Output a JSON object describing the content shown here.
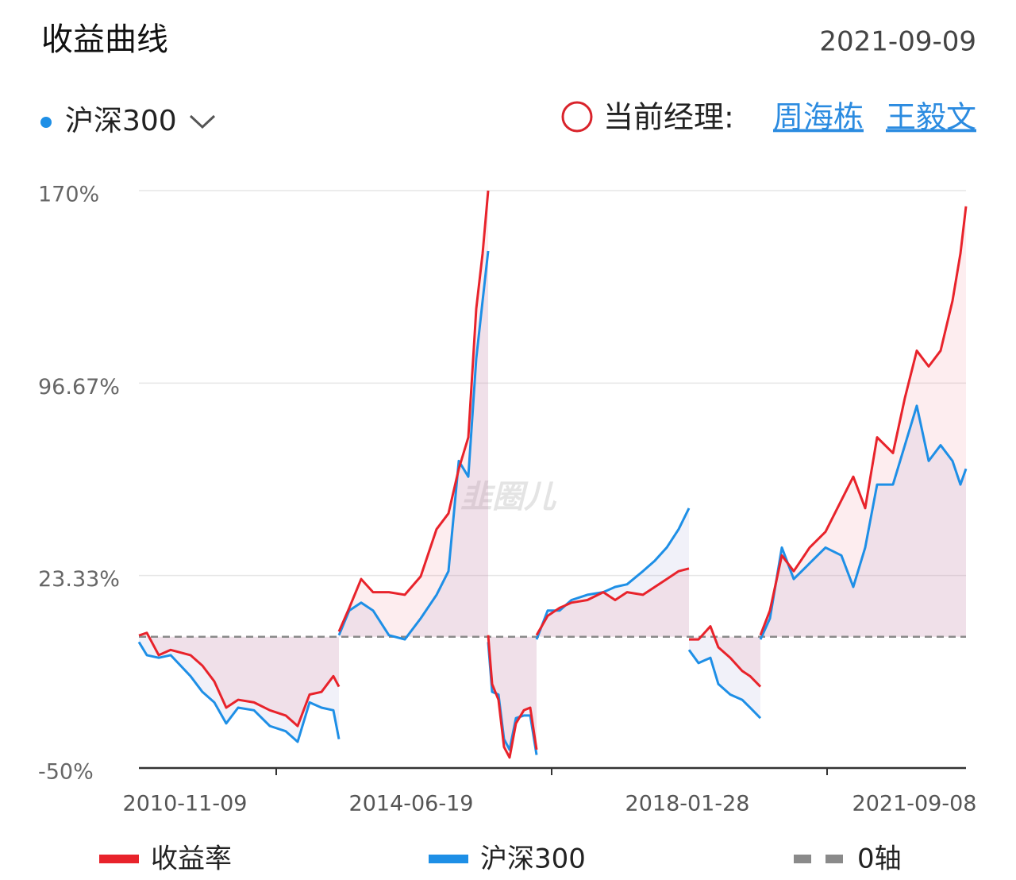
{
  "header": {
    "title": "收益曲线",
    "date": "2021-09-09"
  },
  "selector": {
    "label": "沪深300"
  },
  "manager": {
    "label": "当前经理:",
    "names": [
      "周海栋",
      "王毅文"
    ]
  },
  "chart_data": {
    "type": "line",
    "watermark": "韭圈儿",
    "x": [
      0,
      10,
      25,
      40,
      65,
      80,
      95,
      110,
      125,
      145,
      165,
      185,
      200,
      215,
      230,
      245,
      252,
      252,
      252,
      265,
      280,
      295,
      315,
      335,
      355,
      375,
      390,
      403,
      415,
      425,
      433,
      440,
      440,
      440,
      445,
      453,
      460,
      467,
      475,
      485,
      493,
      501,
      501,
      501,
      515,
      530,
      545,
      565,
      585,
      600,
      615,
      635,
      650,
      665,
      680,
      693,
      693,
      693,
      705,
      720,
      730,
      745,
      760,
      770,
      783,
      783,
      783,
      795,
      810,
      825,
      845,
      865,
      885,
      900,
      915,
      930,
      950,
      965,
      980,
      995,
      1010,
      1025,
      1035,
      1042
    ],
    "series": [
      {
        "name": "收益率",
        "color": "#e8232b",
        "values": [
          0.5,
          1.5,
          -7,
          -5,
          -7,
          -11,
          -17,
          -27,
          -24,
          -25,
          -28,
          -30,
          -34,
          -22,
          -21,
          -15,
          -19,
          null,
          2,
          11,
          22,
          17,
          17,
          16,
          23,
          41,
          47,
          64,
          76,
          125,
          146,
          170,
          null,
          0.6,
          -18,
          -24,
          -42,
          -46,
          -33,
          -28,
          -27,
          -43,
          null,
          0.6,
          8,
          11,
          13,
          14,
          17,
          14,
          17,
          16,
          19,
          22,
          25,
          26,
          null,
          -1,
          -1,
          4,
          -4,
          -8,
          -13,
          -15,
          -19,
          null,
          0.6,
          10,
          31,
          25,
          34,
          40,
          52,
          61,
          49,
          76,
          70,
          91,
          109,
          103,
          109,
          128,
          146,
          164
        ]
      },
      {
        "name": "沪深300",
        "color": "#1e8fe6",
        "values": [
          -2,
          -7,
          -8,
          -7,
          -15,
          -21,
          -25,
          -33,
          -27,
          -28,
          -34,
          -36,
          -40,
          -25,
          -27,
          -28,
          -39,
          null,
          0.6,
          10,
          13,
          10,
          0.6,
          -1,
          7,
          16,
          25,
          67,
          61,
          106,
          128,
          147,
          null,
          -2,
          -21,
          -22,
          -39,
          -43,
          -31,
          -30,
          -30,
          -45,
          null,
          -1,
          10,
          10,
          14,
          16,
          17,
          19,
          20,
          25,
          29,
          34,
          41,
          49,
          null,
          -5,
          -10,
          -8,
          -18,
          -22,
          -24,
          -27,
          -31,
          null,
          -1,
          7,
          34,
          22,
          28,
          34,
          31,
          19,
          34,
          58,
          58,
          73,
          88,
          67,
          73,
          67,
          58,
          64
        ]
      }
    ],
    "baseline": {
      "name": "0轴",
      "value": 0,
      "color": "#8a8a8a"
    },
    "xlim": [
      0,
      1042
    ],
    "xticks": [
      {
        "value": 58,
        "label": "2010-11-09"
      },
      {
        "value": 343,
        "label": "2014-06-19"
      },
      {
        "value": 691,
        "label": "2018-01-28"
      },
      {
        "value": 977,
        "label": "2021-09-08"
      }
    ],
    "xminor_ticks": [
      173,
      520,
      867
    ],
    "ylim": [
      -50,
      170
    ],
    "yticks": [
      {
        "value": -50,
        "label": "-50%"
      },
      {
        "value": 23.33,
        "label": "23.33%"
      },
      {
        "value": 96.67,
        "label": "96.67%"
      },
      {
        "value": 170,
        "label": "170%"
      }
    ],
    "grid": true
  }
}
